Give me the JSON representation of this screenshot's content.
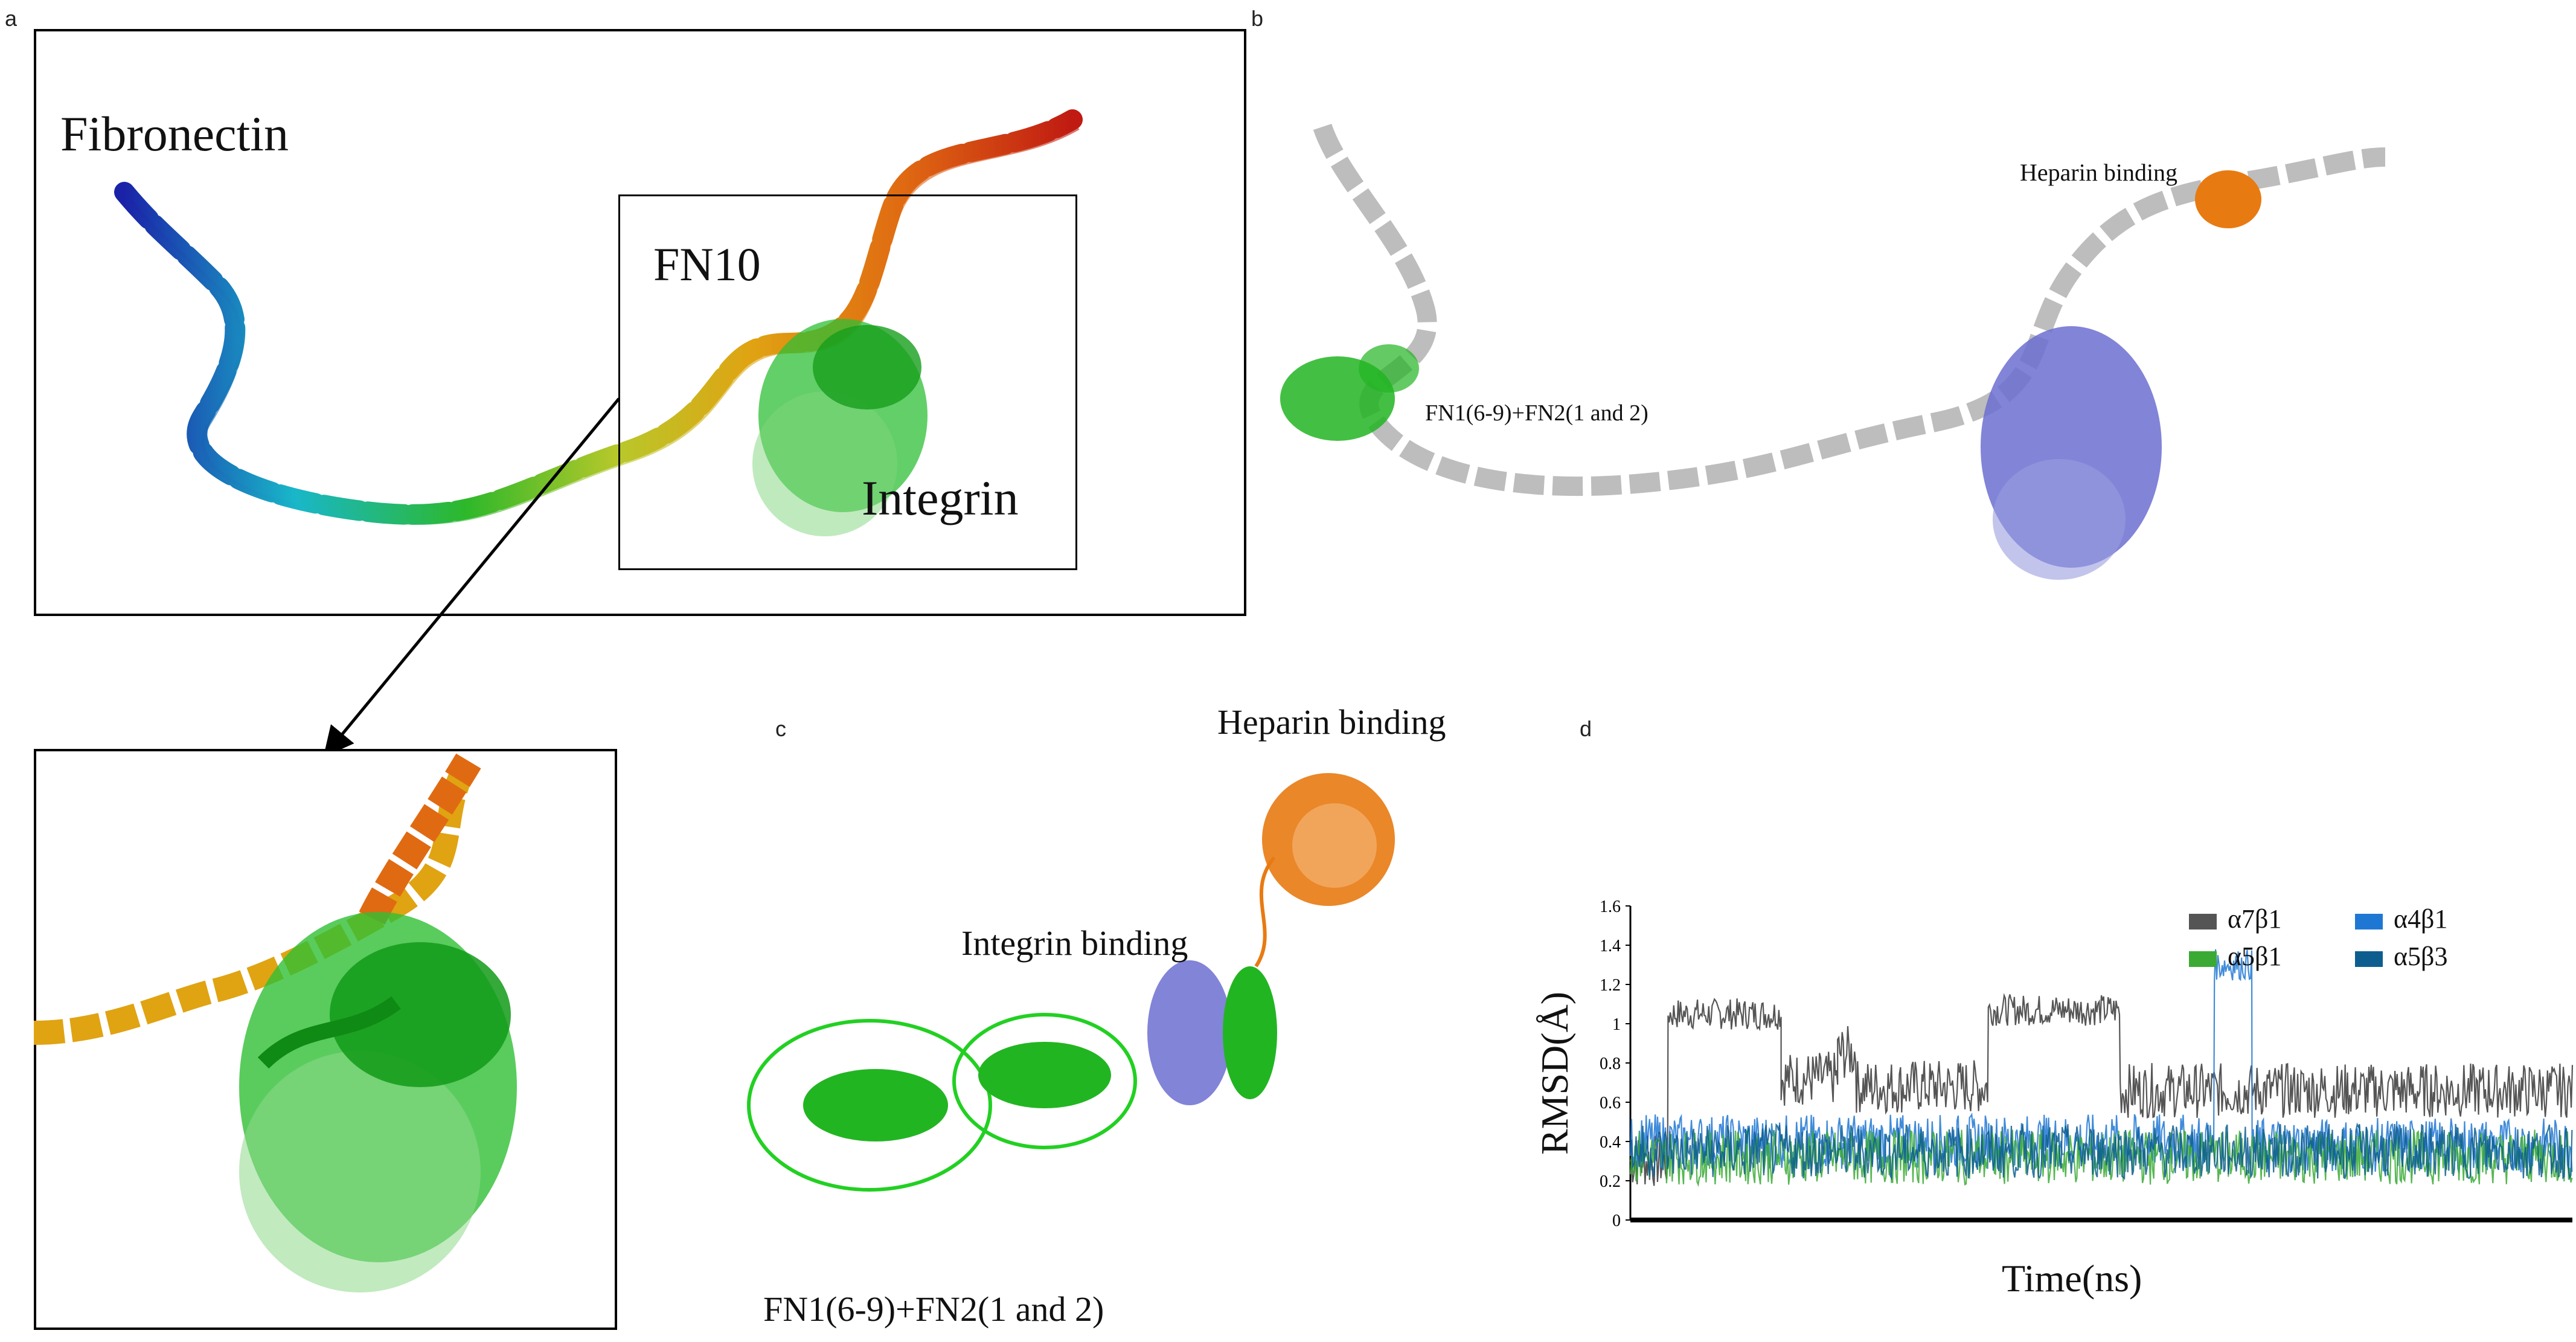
{
  "panels": {
    "a": {
      "letter": "a",
      "label_fibronectin": "Fibronectin",
      "label_fn10": "FN10",
      "label_integrin": "Integrin"
    },
    "b": {
      "letter": "b",
      "label_heparin": "Heparin binding",
      "label_fn": "FN1(6-9)+FN2(1 and 2)"
    },
    "c": {
      "letter": "c",
      "label_heparin": "Heparin binding",
      "label_integrin": "Integrin binding",
      "label_fn": "FN1(6-9)+FN2(1 and 2)"
    },
    "d": {
      "letter": "d"
    }
  },
  "colors": {
    "a7b1": "#555555",
    "a4b1": "#1f77d4",
    "a5b1": "#3aaa35",
    "a5b3": "#0d5e8f",
    "green": "#22b522",
    "orange": "#e87a12",
    "purple": "#6b6fd0",
    "gray": "#bdbdbd"
  },
  "chart_data": {
    "type": "line",
    "xlabel": "Time(ns)",
    "ylabel": "RMSD(Å)",
    "ylim": [
      0,
      1.6
    ],
    "yticks": [
      "0",
      "0.2",
      "0.4",
      "0.6",
      "0.8",
      "1",
      "1.2",
      "1.4",
      "1.6"
    ],
    "x_range": [
      0,
      5000
    ],
    "legend_position": "top-right",
    "series": [
      {
        "name": "α7β1",
        "color": "#555555",
        "segments": [
          [
            0,
            200,
            0.3
          ],
          [
            200,
            800,
            1.05
          ],
          [
            800,
            1100,
            0.72
          ],
          [
            1100,
            1200,
            0.85
          ],
          [
            1200,
            1900,
            0.68
          ],
          [
            1900,
            2600,
            1.07
          ],
          [
            2600,
            5000,
            0.66
          ]
        ]
      },
      {
        "name": "α4β1",
        "color": "#1f77d4",
        "segments": [
          [
            0,
            3100,
            0.4
          ],
          [
            3100,
            3300,
            1.3
          ],
          [
            3300,
            5000,
            0.38
          ]
        ]
      },
      {
        "name": "α5β1",
        "color": "#3aaa35",
        "segments": [
          [
            0,
            5000,
            0.32
          ]
        ]
      },
      {
        "name": "α5β3",
        "color": "#0d5e8f",
        "segments": [
          [
            0,
            5000,
            0.35
          ]
        ]
      }
    ]
  }
}
